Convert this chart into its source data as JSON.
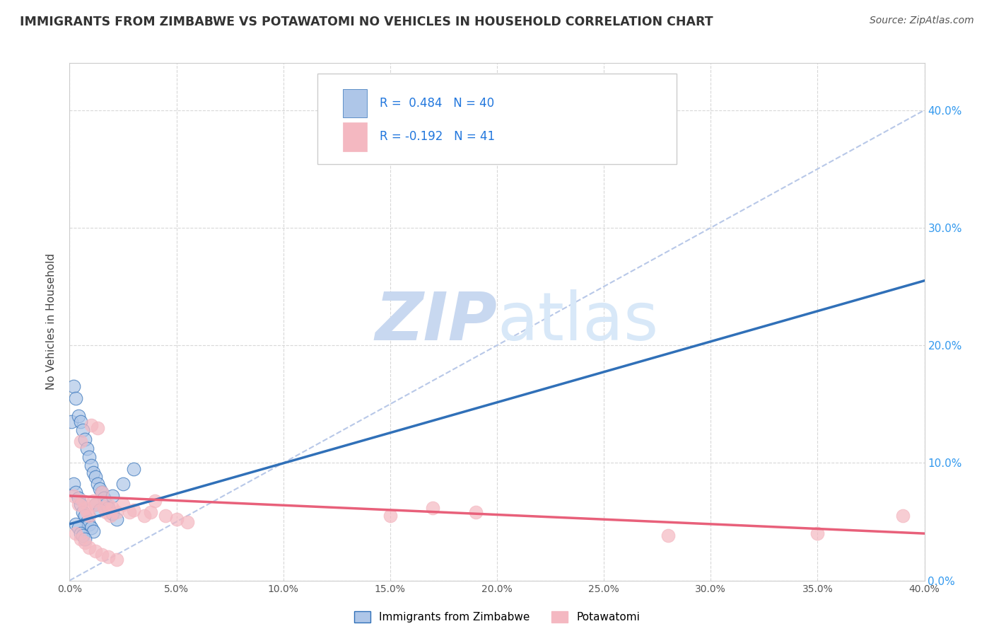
{
  "title": "IMMIGRANTS FROM ZIMBABWE VS POTAWATOMI NO VEHICLES IN HOUSEHOLD CORRELATION CHART",
  "source_text": "Source: ZipAtlas.com",
  "ylabel": "No Vehicles in Household",
  "legend_label_1": "Immigrants from Zimbabwe",
  "legend_label_2": "Potawatomi",
  "R1": 0.484,
  "N1": 40,
  "R2": -0.192,
  "N2": 41,
  "color1": "#aec6e8",
  "color2": "#f4b8c1",
  "line_color1": "#3070b8",
  "line_color2": "#e8607a",
  "trend_color_dashed": "#b8c8e8",
  "watermark_zip": "ZIP",
  "watermark_atlas": "atlas",
  "watermark_color": "#c8d8f0",
  "background_color": "#ffffff",
  "xlim": [
    0.0,
    0.4
  ],
  "ylim": [
    0.0,
    0.44
  ],
  "xticks": [
    0.0,
    0.05,
    0.1,
    0.15,
    0.2,
    0.25,
    0.3,
    0.35,
    0.4
  ],
  "yticks_right": [
    0.0,
    0.1,
    0.2,
    0.3,
    0.4
  ],
  "grid_color": "#d8d8d8",
  "blue_trend_x0": 0.0,
  "blue_trend_y0": 0.048,
  "blue_trend_x1": 0.4,
  "blue_trend_y1": 0.255,
  "pink_trend_x0": 0.0,
  "pink_trend_y0": 0.072,
  "pink_trend_x1": 0.4,
  "pink_trend_y1": 0.04,
  "scatter1_x": [
    0.001,
    0.002,
    0.003,
    0.004,
    0.005,
    0.006,
    0.007,
    0.008,
    0.009,
    0.01,
    0.011,
    0.012,
    0.013,
    0.014,
    0.015,
    0.016,
    0.017,
    0.018,
    0.02,
    0.022,
    0.002,
    0.003,
    0.004,
    0.005,
    0.006,
    0.007,
    0.008,
    0.009,
    0.01,
    0.011,
    0.003,
    0.004,
    0.005,
    0.006,
    0.007,
    0.012,
    0.014,
    0.02,
    0.025,
    0.03
  ],
  "scatter1_y": [
    0.135,
    0.165,
    0.155,
    0.14,
    0.135,
    0.128,
    0.12,
    0.112,
    0.105,
    0.098,
    0.092,
    0.088,
    0.082,
    0.078,
    0.075,
    0.07,
    0.065,
    0.062,
    0.057,
    0.052,
    0.082,
    0.075,
    0.07,
    0.065,
    0.058,
    0.055,
    0.05,
    0.048,
    0.045,
    0.042,
    0.048,
    0.045,
    0.04,
    0.038,
    0.035,
    0.065,
    0.06,
    0.072,
    0.082,
    0.095
  ],
  "scatter2_x": [
    0.002,
    0.004,
    0.005,
    0.006,
    0.007,
    0.008,
    0.009,
    0.01,
    0.011,
    0.012,
    0.013,
    0.015,
    0.016,
    0.017,
    0.018,
    0.019,
    0.02,
    0.022,
    0.025,
    0.028,
    0.03,
    0.035,
    0.038,
    0.04,
    0.045,
    0.05,
    0.055,
    0.15,
    0.17,
    0.19,
    0.003,
    0.005,
    0.007,
    0.009,
    0.012,
    0.015,
    0.018,
    0.022,
    0.28,
    0.35,
    0.39
  ],
  "scatter2_y": [
    0.072,
    0.065,
    0.118,
    0.068,
    0.062,
    0.058,
    0.055,
    0.132,
    0.068,
    0.065,
    0.13,
    0.075,
    0.062,
    0.058,
    0.065,
    0.055,
    0.062,
    0.058,
    0.065,
    0.058,
    0.06,
    0.055,
    0.058,
    0.068,
    0.055,
    0.052,
    0.05,
    0.055,
    0.062,
    0.058,
    0.04,
    0.035,
    0.032,
    0.028,
    0.025,
    0.022,
    0.02,
    0.018,
    0.038,
    0.04,
    0.055
  ]
}
